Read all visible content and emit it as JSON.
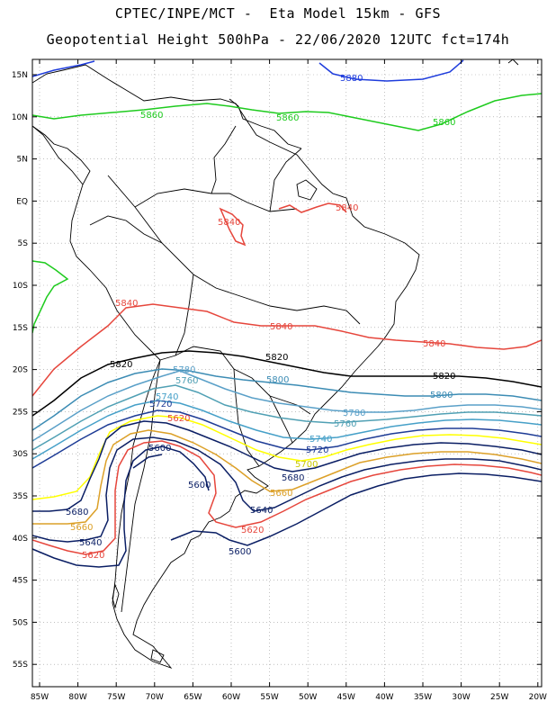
{
  "title_line1": "CPTEC/INPE/MCT -  Eta Model 15km - GFS",
  "title_line2": "Geopotential Height 500hPa - 22/06/2020 12UTC fct=174h",
  "lat_labels": [
    "15N",
    "10N",
    "5N",
    "EQ",
    "5S",
    "10S",
    "15S",
    "20S",
    "25S",
    "30S",
    "35S",
    "40S",
    "45S",
    "50S",
    "55S"
  ],
  "lon_labels": [
    "85W",
    "80W",
    "75W",
    "70W",
    "65W",
    "60W",
    "55W",
    "50W",
    "45W",
    "40W",
    "35W",
    "30W",
    "25W",
    "20W"
  ],
  "contour_colors": {
    "c5880": "#1e3cdc",
    "c5860": "#1ecb1e",
    "c5840": "#e6463c",
    "c5820": "#000000",
    "c5800": "#3c8cb4",
    "c5780": "#5aa0c8",
    "c5760": "#50a0b4",
    "c5740": "#46a0c8",
    "c5720": "#1e3c96",
    "c5700": "#ffff00",
    "c5680": "#0a1e64",
    "c5660": "#dca028",
    "c5640": "#0a1e64",
    "c5620": "#e6463c",
    "c5600": "#0a1e64"
  },
  "contour_labels": [
    {
      "text": "5880",
      "color": "c5880"
    },
    {
      "text": "5860",
      "color": "c5860"
    },
    {
      "text": "5860",
      "color": "c5860"
    },
    {
      "text": "5860",
      "color": "c5860"
    },
    {
      "text": "5840",
      "color": "c5840"
    },
    {
      "text": "5840",
      "color": "c5840"
    },
    {
      "text": "5840",
      "color": "c5840"
    },
    {
      "text": "5840",
      "color": "c5840"
    },
    {
      "text": "5840",
      "color": "c5840"
    },
    {
      "text": "5820",
      "color": "c5820"
    },
    {
      "text": "5820",
      "color": "c5820"
    },
    {
      "text": "5820",
      "color": "c5820"
    },
    {
      "text": "5800",
      "color": "c5800"
    },
    {
      "text": "5800",
      "color": "c5800"
    },
    {
      "text": "5780",
      "color": "c5780"
    },
    {
      "text": "5780",
      "color": "c5780"
    },
    {
      "text": "5760",
      "color": "c5760"
    },
    {
      "text": "5760",
      "color": "c5760"
    },
    {
      "text": "5740",
      "color": "c5740"
    },
    {
      "text": "5740",
      "color": "c5740"
    },
    {
      "text": "5720",
      "color": "c5720"
    },
    {
      "text": "5720",
      "color": "c5720"
    },
    {
      "text": "5700",
      "color": "c5700"
    },
    {
      "text": "5680",
      "color": "c5680"
    },
    {
      "text": "5680",
      "color": "c5680"
    },
    {
      "text": "5660",
      "color": "c5660"
    },
    {
      "text": "5660",
      "color": "c5660"
    },
    {
      "text": "5640",
      "color": "c5640"
    },
    {
      "text": "5640",
      "color": "c5640"
    },
    {
      "text": "5620",
      "color": "c5620"
    },
    {
      "text": "5620",
      "color": "c5620"
    },
    {
      "text": "5620",
      "color": "c5620"
    },
    {
      "text": "5600",
      "color": "c5600"
    },
    {
      "text": "5600",
      "color": "c5600"
    },
    {
      "text": "5600",
      "color": "c5600"
    }
  ]
}
